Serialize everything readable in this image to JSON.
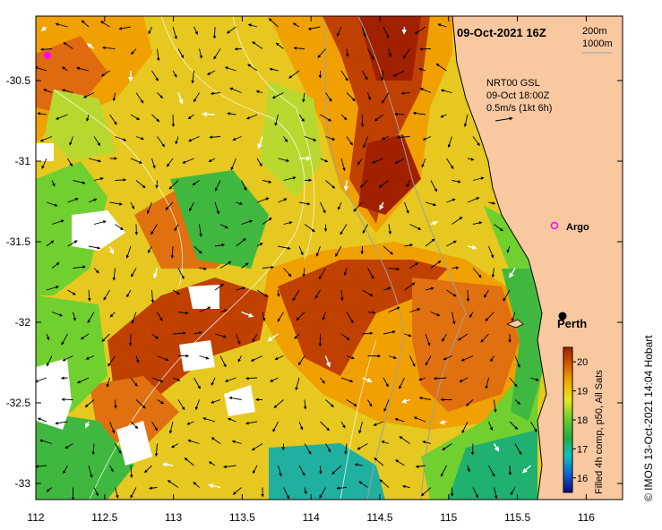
{
  "map": {
    "date_title": "09-Oct-2021 16Z",
    "depth_contours": [
      "200m",
      "1000m"
    ],
    "current_product": {
      "line1": "NRT00 GSL",
      "line2": "09-Oct 18:00Z",
      "line3": "0.5m/s (1kt 6h)"
    },
    "places": [
      {
        "name": "Argo",
        "lon": 115.75,
        "lat": -31.45,
        "marker": "magenta-circle"
      },
      {
        "name": "Perth",
        "lon": 115.85,
        "lat": -31.95,
        "marker": "black-dot"
      }
    ],
    "extra_float_marker": {
      "lon": 112.08,
      "lat": -30.35
    },
    "x_ticks": [
      "112",
      "112.5",
      "113",
      "113.5",
      "114",
      "114.5",
      "115",
      "115.5",
      "116"
    ],
    "y_ticks": [
      "-30.5",
      "-31",
      "-31.5",
      "-32",
      "-32.5",
      "-33"
    ],
    "lon_range": [
      112,
      116.3
    ],
    "lat_range": [
      -33.1,
      -30.1
    ],
    "colorbar": {
      "label": "Filled 4h comp, p50, All Sats",
      "ticks": [
        "16",
        "17",
        "18",
        "19",
        "20"
      ],
      "range": [
        15.5,
        20.5
      ],
      "colors": [
        "#0a0a80",
        "#0a60d0",
        "#10c0c0",
        "#20b040",
        "#70d030",
        "#e8e820",
        "#f0a000",
        "#d05000",
        "#a02000"
      ]
    },
    "credit": "© IMOS 13-Oct-2021 14:04 Hobart",
    "colors": {
      "land": "#f8c8a0",
      "cloud": "#ffffff"
    }
  }
}
